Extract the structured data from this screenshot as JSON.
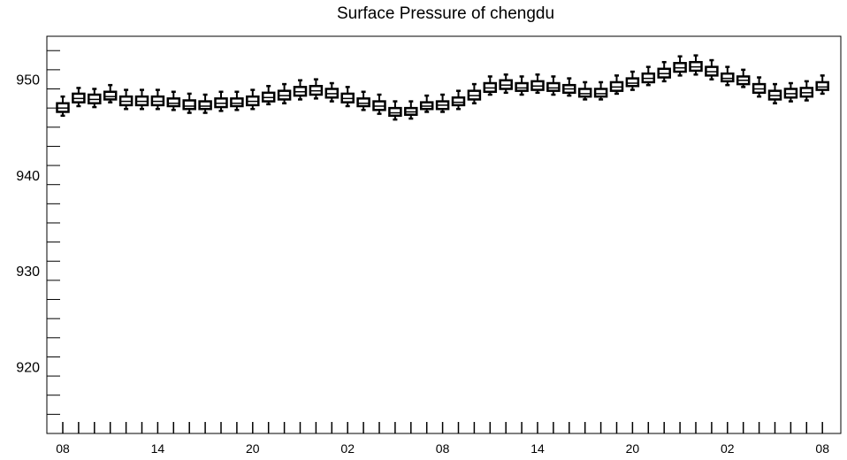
{
  "chart_data": {
    "type": "boxplot",
    "title": "Surface Pressure of chengdu",
    "xlabel": "",
    "ylabel": "",
    "ylim": [
      913,
      954.5
    ],
    "yticks": [
      920,
      930,
      940,
      950
    ],
    "yticks_labels": [
      "920",
      "930",
      "940",
      "950"
    ],
    "xticks_labels": [
      {
        "index": 0,
        "label": "08"
      },
      {
        "index": 6,
        "label": "14"
      },
      {
        "index": 12,
        "label": "20"
      },
      {
        "index": 18,
        "label": "02"
      },
      {
        "index": 24,
        "label": "08"
      },
      {
        "index": 30,
        "label": "14"
      },
      {
        "index": 36,
        "label": "20"
      },
      {
        "index": 42,
        "label": "02"
      },
      {
        "index": 48,
        "label": "08"
      }
    ],
    "grid": false,
    "series": [
      {
        "boxes": [
          {
            "x": 0,
            "whisker_low": 946.2,
            "q1": 946.6,
            "median": 947.0,
            "q3": 947.5,
            "whisker_high": 948.2
          },
          {
            "x": 1,
            "whisker_low": 947.2,
            "q1": 947.6,
            "median": 948.0,
            "q3": 948.5,
            "whisker_high": 949.1
          },
          {
            "x": 2,
            "whisker_low": 947.1,
            "q1": 947.5,
            "median": 947.9,
            "q3": 948.4,
            "whisker_high": 949.0
          },
          {
            "x": 3,
            "whisker_low": 947.6,
            "q1": 947.9,
            "median": 948.2,
            "q3": 948.7,
            "whisker_high": 949.4
          },
          {
            "x": 4,
            "whisker_low": 946.9,
            "q1": 947.3,
            "median": 947.7,
            "q3": 948.2,
            "whisker_high": 948.9
          },
          {
            "x": 5,
            "whisker_low": 946.9,
            "q1": 947.3,
            "median": 947.7,
            "q3": 948.2,
            "whisker_high": 948.9
          },
          {
            "x": 6,
            "whisker_low": 946.9,
            "q1": 947.3,
            "median": 947.7,
            "q3": 948.2,
            "whisker_high": 948.9
          },
          {
            "x": 7,
            "whisker_low": 946.8,
            "q1": 947.2,
            "median": 947.5,
            "q3": 948.0,
            "whisker_high": 948.7
          },
          {
            "x": 8,
            "whisker_low": 946.5,
            "q1": 946.9,
            "median": 947.2,
            "q3": 947.8,
            "whisker_high": 948.5
          },
          {
            "x": 9,
            "whisker_low": 946.5,
            "q1": 946.9,
            "median": 947.2,
            "q3": 947.7,
            "whisker_high": 948.4
          },
          {
            "x": 10,
            "whisker_low": 946.7,
            "q1": 947.1,
            "median": 947.5,
            "q3": 948.0,
            "whisker_high": 948.7
          },
          {
            "x": 11,
            "whisker_low": 946.8,
            "q1": 947.2,
            "median": 947.5,
            "q3": 948.0,
            "whisker_high": 948.7
          },
          {
            "x": 12,
            "whisker_low": 946.9,
            "q1": 947.3,
            "median": 947.7,
            "q3": 948.2,
            "whisker_high": 948.9
          },
          {
            "x": 13,
            "whisker_low": 947.4,
            "q1": 947.7,
            "median": 948.1,
            "q3": 948.6,
            "whisker_high": 949.3
          },
          {
            "x": 14,
            "whisker_low": 947.5,
            "q1": 947.9,
            "median": 948.3,
            "q3": 948.8,
            "whisker_high": 949.5
          },
          {
            "x": 15,
            "whisker_low": 947.9,
            "q1": 948.3,
            "median": 948.7,
            "q3": 949.2,
            "whisker_high": 949.9
          },
          {
            "x": 16,
            "whisker_low": 948.0,
            "q1": 948.4,
            "median": 948.8,
            "q3": 949.3,
            "whisker_high": 950.0
          },
          {
            "x": 17,
            "whisker_low": 947.7,
            "q1": 948.1,
            "median": 948.5,
            "q3": 949.0,
            "whisker_high": 949.6
          },
          {
            "x": 18,
            "whisker_low": 947.2,
            "q1": 947.6,
            "median": 948.0,
            "q3": 948.5,
            "whisker_high": 949.2
          },
          {
            "x": 19,
            "whisker_low": 946.8,
            "q1": 947.2,
            "median": 947.5,
            "q3": 948.0,
            "whisker_high": 948.7
          },
          {
            "x": 20,
            "whisker_low": 946.4,
            "q1": 946.8,
            "median": 947.2,
            "q3": 947.7,
            "whisker_high": 948.4
          },
          {
            "x": 21,
            "whisker_low": 945.8,
            "q1": 946.2,
            "median": 946.5,
            "q3": 947.0,
            "whisker_high": 947.7
          },
          {
            "x": 22,
            "whisker_low": 945.9,
            "q1": 946.3,
            "median": 946.6,
            "q3": 947.0,
            "whisker_high": 947.7
          },
          {
            "x": 23,
            "whisker_low": 946.6,
            "q1": 946.9,
            "median": 947.2,
            "q3": 947.6,
            "whisker_high": 948.3
          },
          {
            "x": 24,
            "whisker_low": 946.6,
            "q1": 946.9,
            "median": 947.3,
            "q3": 947.7,
            "whisker_high": 948.4
          },
          {
            "x": 25,
            "whisker_low": 946.9,
            "q1": 947.3,
            "median": 947.6,
            "q3": 948.1,
            "whisker_high": 948.8
          },
          {
            "x": 26,
            "whisker_low": 947.5,
            "q1": 947.9,
            "median": 948.3,
            "q3": 948.8,
            "whisker_high": 949.5
          },
          {
            "x": 27,
            "whisker_low": 948.4,
            "q1": 948.7,
            "median": 949.1,
            "q3": 949.6,
            "whisker_high": 950.3
          },
          {
            "x": 28,
            "whisker_low": 948.6,
            "q1": 949.0,
            "median": 949.4,
            "q3": 949.9,
            "whisker_high": 950.5
          },
          {
            "x": 29,
            "whisker_low": 948.4,
            "q1": 948.8,
            "median": 949.1,
            "q3": 949.6,
            "whisker_high": 950.3
          },
          {
            "x": 30,
            "whisker_low": 948.6,
            "q1": 948.9,
            "median": 949.3,
            "q3": 949.8,
            "whisker_high": 950.5
          },
          {
            "x": 31,
            "whisker_low": 948.4,
            "q1": 948.8,
            "median": 949.1,
            "q3": 949.6,
            "whisker_high": 950.3
          },
          {
            "x": 32,
            "whisker_low": 948.3,
            "q1": 948.6,
            "median": 949.0,
            "q3": 949.4,
            "whisker_high": 950.1
          },
          {
            "x": 33,
            "whisker_low": 947.9,
            "q1": 948.2,
            "median": 948.5,
            "q3": 949.0,
            "whisker_high": 949.7
          },
          {
            "x": 34,
            "whisker_low": 947.9,
            "q1": 948.2,
            "median": 948.5,
            "q3": 949.0,
            "whisker_high": 949.7
          },
          {
            "x": 35,
            "whisker_low": 948.5,
            "q1": 948.8,
            "median": 949.2,
            "q3": 949.7,
            "whisker_high": 950.4
          },
          {
            "x": 36,
            "whisker_low": 948.9,
            "q1": 949.3,
            "median": 949.6,
            "q3": 950.1,
            "whisker_high": 950.8
          },
          {
            "x": 37,
            "whisker_low": 949.4,
            "q1": 949.7,
            "median": 950.1,
            "q3": 950.6,
            "whisker_high": 951.3
          },
          {
            "x": 38,
            "whisker_low": 949.8,
            "q1": 950.2,
            "median": 950.6,
            "q3": 951.1,
            "whisker_high": 951.8
          },
          {
            "x": 39,
            "whisker_low": 950.4,
            "q1": 950.8,
            "median": 951.2,
            "q3": 951.7,
            "whisker_high": 952.4
          },
          {
            "x": 40,
            "whisker_low": 950.5,
            "q1": 950.9,
            "median": 951.3,
            "q3": 951.8,
            "whisker_high": 952.5
          },
          {
            "x": 41,
            "whisker_low": 950.0,
            "q1": 950.4,
            "median": 950.8,
            "q3": 951.3,
            "whisker_high": 952.0
          },
          {
            "x": 42,
            "whisker_low": 949.4,
            "q1": 949.8,
            "median": 950.1,
            "q3": 950.6,
            "whisker_high": 951.3
          },
          {
            "x": 43,
            "whisker_low": 949.2,
            "q1": 949.5,
            "median": 949.9,
            "q3": 950.3,
            "whisker_high": 951.0
          },
          {
            "x": 44,
            "whisker_low": 948.2,
            "q1": 948.6,
            "median": 949.0,
            "q3": 949.5,
            "whisker_high": 950.2
          },
          {
            "x": 45,
            "whisker_low": 947.5,
            "q1": 947.9,
            "median": 948.3,
            "q3": 948.8,
            "whisker_high": 949.5
          },
          {
            "x": 46,
            "whisker_low": 947.7,
            "q1": 948.1,
            "median": 948.5,
            "q3": 949.0,
            "whisker_high": 949.6
          },
          {
            "x": 47,
            "whisker_low": 947.8,
            "q1": 948.2,
            "median": 948.6,
            "q3": 949.1,
            "whisker_high": 949.8
          },
          {
            "x": 48,
            "whisker_low": 948.5,
            "q1": 948.9,
            "median": 949.2,
            "q3": 949.7,
            "whisker_high": 950.4
          }
        ]
      }
    ],
    "colors": {
      "box_fill": "#ffffff",
      "stroke": "#000000"
    }
  }
}
